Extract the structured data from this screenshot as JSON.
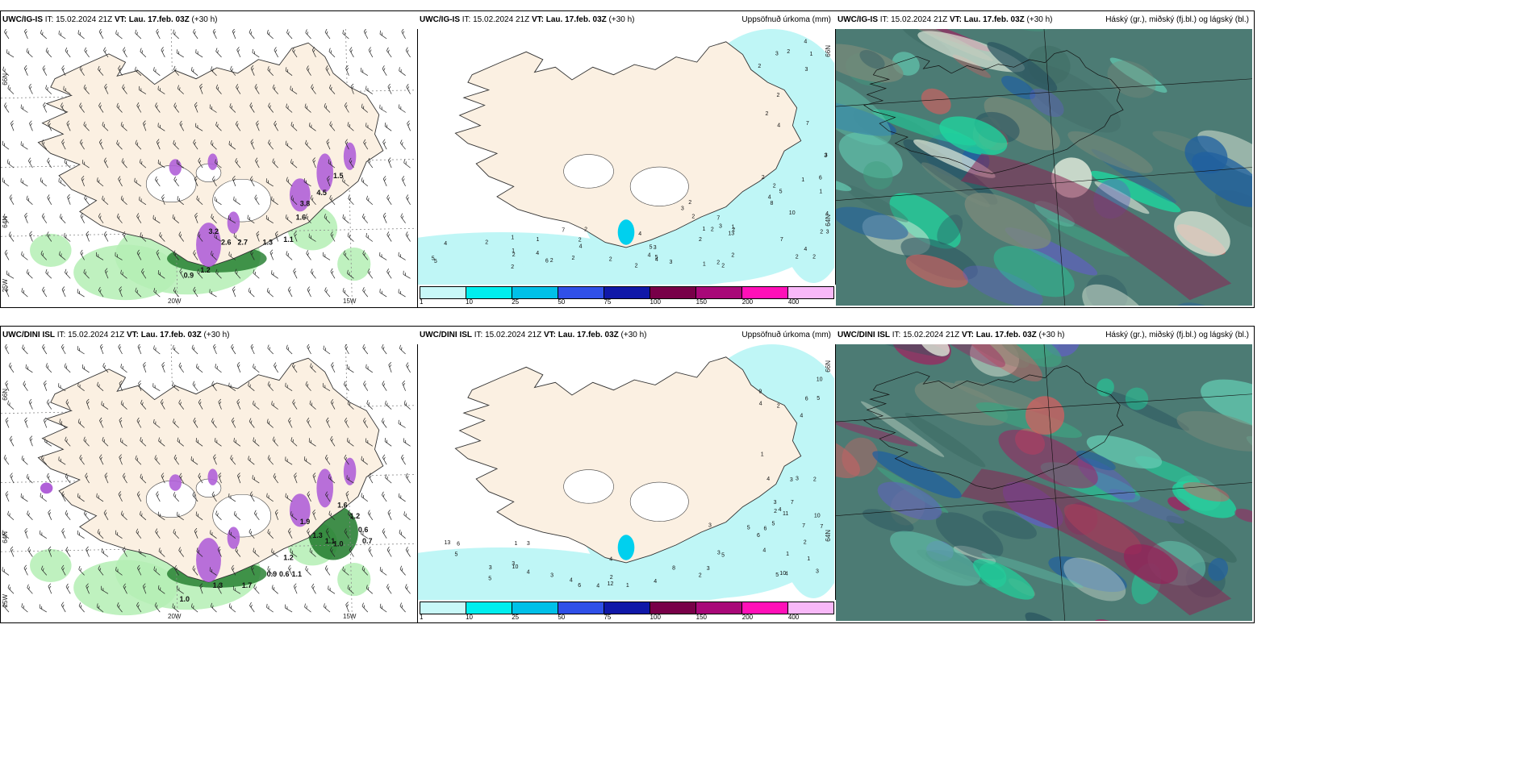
{
  "panels": [
    {
      "id": "p-igis-wind",
      "model": "UWC/IG-IS",
      "it": "IT: 15.02.2024 21Z",
      "vt_label": "VT:",
      "vt": "Lau. 17.feb. 03Z",
      "lead": "(+30 h)",
      "right_label": "",
      "type": "wind",
      "ticks": {
        "lat_top": "66N",
        "lat_mid": "64N",
        "lat_low": "25W",
        "lon_a": "20W",
        "lon_b": "15W"
      },
      "amounts": [
        "2.6",
        "2.7",
        "1.3",
        "1.1",
        "0.9",
        "1.2",
        "3.2",
        "1.6",
        "4.5",
        "3.8",
        "1.5"
      ]
    },
    {
      "id": "p-igis-precip",
      "model": "UWC/IG-IS",
      "it": "IT: 15.02.2024 21Z",
      "vt_label": "VT:",
      "vt": "Lau. 17.feb. 03Z",
      "lead": "(+30 h)",
      "right_label": "Uppsöfnuð úrkoma (mm)",
      "type": "precip",
      "ticks": {
        "lat_top": "66N",
        "lat_mid": "64N"
      },
      "numbers": [
        "4",
        "2",
        "5",
        "3",
        "2",
        "6",
        "3",
        "2",
        "2",
        "2",
        "1",
        "2",
        "2",
        "4",
        "2",
        "4",
        "3",
        "1",
        "5",
        "3",
        "4",
        "2",
        "2",
        "2",
        "4",
        "2",
        "5",
        "3",
        "10",
        "4",
        "7",
        "8",
        "1",
        "1",
        "1",
        "2",
        "2",
        "13",
        "7",
        "6",
        "5",
        "4",
        "7",
        "7",
        "4",
        "3",
        "3",
        "5",
        "4",
        "3",
        "2",
        "1",
        "2",
        "2",
        "1",
        "2",
        "1",
        "3",
        "2",
        "2",
        "2",
        "2",
        "4",
        "2",
        "2",
        "2",
        "2",
        "1",
        "4"
      ],
      "legend": {
        "colors": [
          "#c8f8f8",
          "#00eeee",
          "#00c0e8",
          "#3050e8",
          "#1018a8",
          "#780048",
          "#a80878",
          "#ff10b8",
          "#f8b8f8"
        ],
        "labels": [
          "1",
          "10",
          "25",
          "50",
          "75",
          "100",
          "150",
          "200",
          "400"
        ]
      }
    },
    {
      "id": "p-igis-cloud",
      "model": "UWC/IG-IS",
      "it": "IT: 15.02.2024 21Z",
      "vt_label": "VT:",
      "vt": "Lau. 17.feb. 03Z",
      "lead": "(+30 h)",
      "right_label": "Háský (gr.), miðský (fj.bl.) og lágský (bl.)",
      "type": "cloud"
    },
    {
      "id": "p-dini-wind",
      "model": "UWC/DINI ISL",
      "it": "IT: 15.02.2024 21Z",
      "vt_label": "VT:",
      "vt": "Lau. 17.feb. 03Z",
      "lead": "(+30 h)",
      "right_label": "",
      "type": "wind",
      "ticks": {
        "lat_top": "66N",
        "lat_mid": "64N",
        "lat_low": "25W",
        "lon_a": "20W",
        "lon_b": "15W"
      },
      "amounts": [
        "1.0",
        "1.3",
        "1.7",
        "0.9",
        "0.6",
        "1.1",
        "1.2",
        "0.6",
        "0.7",
        "1.2",
        "1.9",
        "1.3",
        "1.1",
        "1.0",
        "1.6"
      ]
    },
    {
      "id": "p-dini-precip",
      "model": "UWC/DINI ISL",
      "it": "IT: 15.02.2024 21Z",
      "vt_label": "VT:",
      "vt": "Lau. 17.feb. 03Z",
      "lead": "(+30 h)",
      "right_label": "Uppsöfnuð úrkoma (mm)",
      "type": "precip",
      "ticks": {
        "lat_top": "66N",
        "lat_mid": "64N"
      },
      "numbers": [
        "2",
        "1",
        "1",
        "2",
        "4",
        "5",
        "2",
        "3",
        "4",
        "3",
        "4",
        "3",
        "1",
        "3",
        "4",
        "2",
        "5",
        "4",
        "3",
        "6",
        "12",
        "10",
        "7",
        "6",
        "5",
        "5",
        "4",
        "4",
        "5",
        "5",
        "7",
        "3",
        "3",
        "10",
        "11",
        "13",
        "7",
        "8",
        "10",
        "9",
        "6",
        "6",
        "6",
        "10",
        "3",
        "4",
        "5",
        "3",
        "3",
        "1",
        "2",
        "3",
        "4",
        "1",
        "4",
        "2",
        "4"
      ],
      "legend": {
        "colors": [
          "#c8f8f8",
          "#00eeee",
          "#00c0e8",
          "#3050e8",
          "#1018a8",
          "#780048",
          "#a80878",
          "#ff10b8",
          "#f8b8f8"
        ],
        "labels": [
          "1",
          "10",
          "25",
          "50",
          "75",
          "100",
          "150",
          "200",
          "400"
        ]
      }
    },
    {
      "id": "p-dini-cloud",
      "model": "UWC/DINI ISL",
      "it": "IT: 15.02.2024 21Z",
      "vt_label": "VT:",
      "vt": "Lau. 17.feb. 03Z",
      "lead": "(+30 h)",
      "right_label": "Háský (gr.), miðský (fj.bl.) og lágský (bl.)",
      "type": "cloud"
    }
  ],
  "colors": {
    "land": "#fbf0e2",
    "sea_cyan": "#bff6f6",
    "precip_green": "#b4eeb4",
    "precip_dark": "#1f7a2a",
    "snow_purple": "#b060d8",
    "cloud_base": "#4c7b74",
    "cloud_teal": "#1ed8a0"
  }
}
